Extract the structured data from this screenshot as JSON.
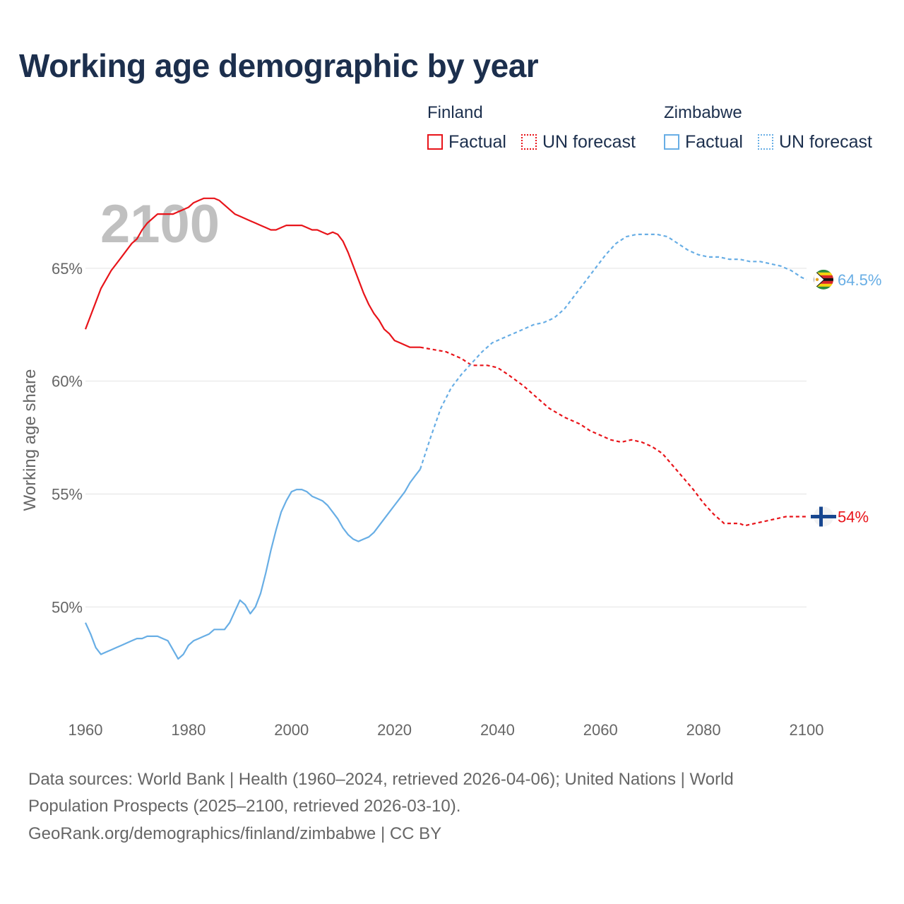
{
  "title": "Working age demographic by year",
  "legend": {
    "groups": [
      {
        "name": "Finland",
        "color": "#e8141a",
        "factual": "Factual",
        "forecast": "UN forecast"
      },
      {
        "name": "Zimbabwe",
        "color": "#68aee5",
        "factual": "Factual",
        "forecast": "UN forecast"
      }
    ]
  },
  "chart_data": {
    "type": "line",
    "year_watermark": "2100",
    "ylabel": "Working age share",
    "xlabel": "",
    "xlim": [
      1960,
      2100
    ],
    "ylim": [
      45.6,
      69.5
    ],
    "x_ticks": [
      "1960",
      "1980",
      "2000",
      "2020",
      "2040",
      "2060",
      "2080",
      "2100"
    ],
    "y_ticks": [
      {
        "value": 50,
        "label": "50%"
      },
      {
        "value": 55,
        "label": "55%"
      },
      {
        "value": 60,
        "label": "60%"
      },
      {
        "value": 65,
        "label": "65%"
      }
    ],
    "series": [
      {
        "name": "Finland",
        "color": "#e8141a",
        "end_label": "54%",
        "end_icon": "finland-flag-icon",
        "factual": {
          "x": [
            1960,
            1961,
            1962,
            1963,
            1964,
            1965,
            1966,
            1967,
            1968,
            1969,
            1970,
            1971,
            1972,
            1973,
            1974,
            1975,
            1976,
            1977,
            1978,
            1979,
            1980,
            1981,
            1982,
            1983,
            1984,
            1985,
            1986,
            1987,
            1988,
            1989,
            1990,
            1991,
            1992,
            1993,
            1994,
            1995,
            1996,
            1997,
            1998,
            1999,
            2000,
            2001,
            2002,
            2003,
            2004,
            2005,
            2006,
            2007,
            2008,
            2009,
            2010,
            2011,
            2012,
            2013,
            2014,
            2015,
            2016,
            2017,
            2018,
            2019,
            2020,
            2021,
            2022,
            2023,
            2024,
            2025
          ],
          "y": [
            62.3,
            62.9,
            63.5,
            64.1,
            64.5,
            64.9,
            65.2,
            65.5,
            65.8,
            66.1,
            66.3,
            66.7,
            67.0,
            67.2,
            67.4,
            67.4,
            67.4,
            67.4,
            67.5,
            67.6,
            67.7,
            67.9,
            68.0,
            68.1,
            68.1,
            68.1,
            68.0,
            67.8,
            67.6,
            67.4,
            67.3,
            67.2,
            67.1,
            67.0,
            66.9,
            66.8,
            66.7,
            66.7,
            66.8,
            66.9,
            66.9,
            66.9,
            66.9,
            66.8,
            66.7,
            66.7,
            66.6,
            66.5,
            66.6,
            66.5,
            66.2,
            65.7,
            65.1,
            64.5,
            63.9,
            63.4,
            63.0,
            62.7,
            62.3,
            62.1,
            61.8,
            61.7,
            61.6,
            61.5,
            61.5,
            61.5
          ]
        },
        "forecast": {
          "x": [
            2025,
            2030,
            2033,
            2035,
            2038,
            2040,
            2042,
            2045,
            2048,
            2050,
            2053,
            2056,
            2058,
            2060,
            2062,
            2064,
            2066,
            2068,
            2070,
            2072,
            2075,
            2078,
            2080,
            2082,
            2084,
            2086,
            2087,
            2088,
            2090,
            2092,
            2094,
            2096,
            2098,
            2100
          ],
          "y": [
            61.5,
            61.3,
            61.0,
            60.7,
            60.7,
            60.6,
            60.3,
            59.8,
            59.2,
            58.8,
            58.4,
            58.1,
            57.8,
            57.6,
            57.4,
            57.3,
            57.4,
            57.3,
            57.1,
            56.8,
            56.0,
            55.2,
            54.6,
            54.1,
            53.7,
            53.7,
            53.7,
            53.6,
            53.7,
            53.8,
            53.9,
            54.0,
            54.0,
            54.0
          ]
        }
      },
      {
        "name": "Zimbabwe",
        "color": "#68aee5",
        "end_label": "64.5%",
        "end_icon": "zimbabwe-flag-icon",
        "factual": {
          "x": [
            1960,
            1961,
            1962,
            1963,
            1964,
            1965,
            1966,
            1967,
            1968,
            1969,
            1970,
            1971,
            1972,
            1973,
            1974,
            1975,
            1976,
            1977,
            1978,
            1979,
            1980,
            1981,
            1982,
            1983,
            1984,
            1985,
            1986,
            1987,
            1988,
            1989,
            1990,
            1991,
            1992,
            1993,
            1994,
            1995,
            1996,
            1997,
            1998,
            1999,
            2000,
            2001,
            2002,
            2003,
            2004,
            2005,
            2006,
            2007,
            2008,
            2009,
            2010,
            2011,
            2012,
            2013,
            2014,
            2015,
            2016,
            2017,
            2018,
            2019,
            2020,
            2021,
            2022,
            2023,
            2024,
            2025
          ],
          "y": [
            49.3,
            48.8,
            48.2,
            47.9,
            48.0,
            48.1,
            48.2,
            48.3,
            48.4,
            48.5,
            48.6,
            48.6,
            48.7,
            48.7,
            48.7,
            48.6,
            48.5,
            48.1,
            47.7,
            47.9,
            48.3,
            48.5,
            48.6,
            48.7,
            48.8,
            49.0,
            49.0,
            49.0,
            49.3,
            49.8,
            50.3,
            50.1,
            49.7,
            50.0,
            50.6,
            51.5,
            52.5,
            53.4,
            54.2,
            54.7,
            55.1,
            55.2,
            55.2,
            55.1,
            54.9,
            54.8,
            54.7,
            54.5,
            54.2,
            53.9,
            53.5,
            53.2,
            53.0,
            52.9,
            53.0,
            53.1,
            53.3,
            53.6,
            53.9,
            54.2,
            54.5,
            54.8,
            55.1,
            55.5,
            55.8,
            56.1
          ]
        },
        "forecast": {
          "x": [
            2025,
            2027,
            2029,
            2031,
            2033,
            2035,
            2037,
            2039,
            2041,
            2043,
            2045,
            2047,
            2049,
            2051,
            2053,
            2055,
            2057,
            2059,
            2061,
            2063,
            2065,
            2067,
            2069,
            2071,
            2073,
            2075,
            2077,
            2079,
            2081,
            2083,
            2085,
            2087,
            2089,
            2091,
            2093,
            2095,
            2097,
            2099,
            2100
          ],
          "y": [
            56.1,
            57.5,
            58.8,
            59.7,
            60.3,
            60.8,
            61.3,
            61.7,
            61.9,
            62.1,
            62.3,
            62.5,
            62.6,
            62.8,
            63.2,
            63.8,
            64.4,
            65.0,
            65.6,
            66.1,
            66.4,
            66.5,
            66.5,
            66.5,
            66.4,
            66.1,
            65.8,
            65.6,
            65.5,
            65.5,
            65.4,
            65.4,
            65.3,
            65.3,
            65.2,
            65.1,
            64.9,
            64.6,
            64.5
          ]
        }
      }
    ]
  },
  "sources": {
    "line1": "Data sources: World Bank | Health (1960–2024, retrieved 2026-04-06); United Nations | World",
    "line2": "Population Prospects (2025–2100, retrieved 2026-03-10).",
    "line3": "GeoRank.org/demographics/finland/zimbabwe | CC BY"
  }
}
